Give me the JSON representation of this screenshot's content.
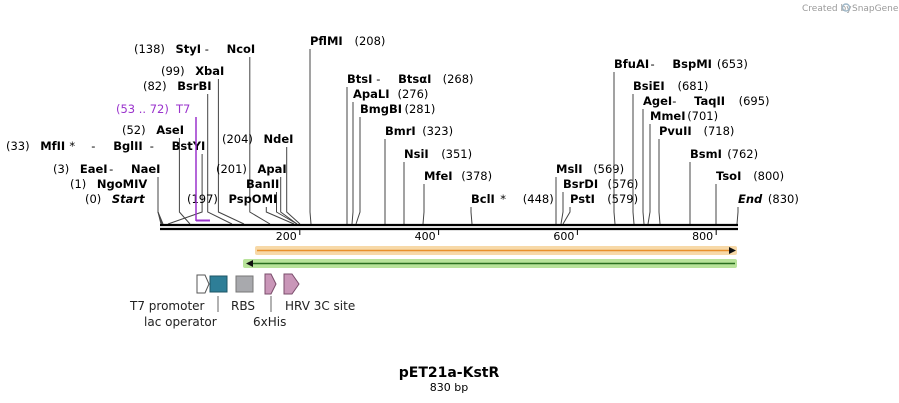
{
  "credit": "Created by",
  "brand": "SnapGene",
  "title": "pET21a-KstR",
  "length_label": "830 bp",
  "sequence_length": 830,
  "ruler_ticks": [
    {
      "pos": 200,
      "label": "200"
    },
    {
      "pos": 400,
      "label": "400"
    },
    {
      "pos": 600,
      "label": "600"
    },
    {
      "pos": 800,
      "label": "800"
    }
  ],
  "enzymes": [
    {
      "pos": 138,
      "site": 270,
      "row": 0,
      "pos_label": "(138)",
      "names": [
        {
          "t": "StyI",
          "b": true
        },
        {
          "t": " - ",
          "b": false
        },
        {
          "t": "NcoI",
          "b": true
        }
      ]
    },
    {
      "pos": 208,
      "site": 311,
      "row": -0.5,
      "pos_label": "(208)",
      "names": [
        {
          "t": "PflMI",
          "b": true
        }
      ],
      "side": "right"
    },
    {
      "pos": 99,
      "site": 244,
      "row": 1,
      "pos_label": "(99)",
      "names": [
        {
          "t": "XbaI",
          "b": true
        }
      ]
    },
    {
      "pos": 82,
      "site": 232,
      "row": 2,
      "pos_label": "(82)",
      "names": [
        {
          "t": "BsrBI",
          "b": true
        }
      ]
    },
    {
      "pos": 52,
      "site": 190,
      "row": 4,
      "pos_label": "(52)",
      "names": [
        {
          "t": "AseI",
          "b": true
        }
      ]
    },
    {
      "pos": 33,
      "site": 168,
      "row": 5,
      "pos_label": "(33)",
      "names": [
        {
          "t": "MfII",
          "b": true
        },
        {
          "t": " * ",
          "b": false
        },
        {
          "t": " - ",
          "b": false
        },
        {
          "t": "BglII",
          "b": true
        },
        {
          "t": " - ",
          "b": false
        },
        {
          "t": "BstYI",
          "b": true
        }
      ]
    },
    {
      "pos": 3,
      "site": 163,
      "row": 6,
      "pos_label": "(3)",
      "names": [
        {
          "t": "EaeI",
          "b": true
        },
        {
          "t": " - ",
          "b": false
        },
        {
          "t": "NaeI",
          "b": true
        }
      ]
    },
    {
      "pos": 1,
      "site": 162,
      "row": 7,
      "pos_label": "(1)",
      "names": [
        {
          "t": "NgoMIV",
          "b": true
        }
      ]
    },
    {
      "pos": 0,
      "site": 161,
      "row": 8,
      "pos_label": "(0)",
      "names": [
        {
          "t": "Start",
          "b": true,
          "i": true
        }
      ]
    },
    {
      "pos": 204,
      "site": 300,
      "row": 4.3,
      "pos_label": "(204)",
      "names": [
        {
          "t": "NdeI",
          "b": true
        }
      ]
    },
    {
      "pos": 201,
      "site": 297,
      "row": 5.4,
      "pos_label": "(201)",
      "names": [
        {
          "t": "ApaI",
          "b": true
        }
      ]
    },
    {
      "pos": 201,
      "site": 297,
      "row": 6.4,
      "pos_label": "",
      "names": [
        {
          "t": "BanII",
          "b": true
        }
      ]
    },
    {
      "pos": 197,
      "site": 294,
      "row": 7.4,
      "pos_label": "(197)",
      "names": [
        {
          "t": "PspOMI",
          "b": true
        }
      ]
    },
    {
      "pos": 268,
      "site": 347,
      "row": 1,
      "pos_label": "(268)",
      "names": [
        {
          "t": "BtsI",
          "b": true
        },
        {
          "t": " - ",
          "b": false
        },
        {
          "t": "BtsαI",
          "b": true
        }
      ],
      "side": "right"
    },
    {
      "pos": 276,
      "site": 352,
      "row": 2,
      "pos_label": "(276)",
      "names": [
        {
          "t": "ApaLI",
          "b": true
        }
      ],
      "side": "right"
    },
    {
      "pos": 281,
      "site": 356,
      "row": 3,
      "pos_label": "(281)",
      "names": [
        {
          "t": "BmgBI",
          "b": true
        }
      ],
      "side": "right"
    },
    {
      "pos": 323,
      "site": 385,
      "row": 4.5,
      "pos_label": "(323)",
      "names": [
        {
          "t": "BmrI",
          "b": true
        }
      ],
      "side": "right"
    },
    {
      "pos": 351,
      "site": 404,
      "row": 5.6,
      "pos_label": "(351)",
      "names": [
        {
          "t": "NsiI",
          "b": true
        }
      ],
      "side": "right"
    },
    {
      "pos": 378,
      "site": 423,
      "row": 6.7,
      "pos_label": "(378)",
      "names": [
        {
          "t": "MfeI",
          "b": true
        }
      ],
      "side": "right"
    },
    {
      "pos": 448,
      "site": 472,
      "row": 8,
      "pos_label": "(448)",
      "names": [
        {
          "t": "BclI",
          "b": true
        },
        {
          "t": " *",
          "b": false
        }
      ],
      "side": "right"
    },
    {
      "pos": 569,
      "site": 556,
      "row": 6,
      "pos_label": "(569)",
      "names": [
        {
          "t": "MslI",
          "b": true
        }
      ],
      "side": "right"
    },
    {
      "pos": 576,
      "site": 561,
      "row": 7,
      "pos_label": "(576)",
      "names": [
        {
          "t": "BsrDI",
          "b": true
        }
      ],
      "side": "right"
    },
    {
      "pos": 579,
      "site": 563,
      "row": 8,
      "pos_label": "(579)",
      "names": [
        {
          "t": "PstI",
          "b": true
        }
      ],
      "side": "right"
    },
    {
      "pos": 653,
      "site": 615,
      "row": 0.9,
      "pos_label": "(653)",
      "names": [
        {
          "t": "BfuAI",
          "b": true
        },
        {
          "t": " - ",
          "b": false
        },
        {
          "t": "BspMI",
          "b": true
        }
      ],
      "side": "right"
    },
    {
      "pos": 681,
      "site": 634,
      "row": 2.2,
      "pos_label": "(681)",
      "names": [
        {
          "t": "BsiEI",
          "b": true
        }
      ],
      "side": "right"
    },
    {
      "pos": 695,
      "site": 644,
      "row": 3.2,
      "pos_label": "(695)",
      "names": [
        {
          "t": "AgeI",
          "b": true
        },
        {
          "t": " - ",
          "b": false
        },
        {
          "t": "TaqII",
          "b": true
        }
      ],
      "side": "right"
    },
    {
      "pos": 701,
      "site": 648,
      "row": 4.1,
      "pos_label": "(701)",
      "names": [
        {
          "t": "MmeI",
          "b": true
        }
      ],
      "side": "right"
    },
    {
      "pos": 718,
      "site": 660,
      "row": 5,
      "pos_label": "(718)",
      "names": [
        {
          "t": "PvuII",
          "b": true
        }
      ],
      "side": "right"
    },
    {
      "pos": 762,
      "site": 690,
      "row": 6,
      "pos_label": "(762)",
      "names": [
        {
          "t": "BsmI",
          "b": true
        }
      ],
      "side": "right"
    },
    {
      "pos": 800,
      "site": 716,
      "row": 7,
      "pos_label": "(800)",
      "names": [
        {
          "t": "TsoI",
          "b": true
        }
      ],
      "side": "right"
    },
    {
      "pos": 830,
      "site": 737,
      "row": 8,
      "pos_label": "(830)",
      "names": [
        {
          "t": "End",
          "b": true,
          "i": true
        }
      ],
      "side": "right"
    }
  ],
  "primer": {
    "range_label": "(53 .. 72)",
    "name": "T7",
    "color": "#9a33cc"
  },
  "orf_forward": {
    "color": "#e8902a",
    "halo": "#f7d9a8"
  },
  "orf_reverse": {
    "color": "#2a6e1f",
    "halo": "#b8e39a"
  },
  "features": [
    {
      "name": "T7 promoter",
      "color": "#ffffff"
    },
    {
      "name": "lac operator",
      "color": "#2e7e97"
    },
    {
      "name": "RBS",
      "color": "#a8a9ad"
    },
    {
      "name": "6xHis",
      "color": "#c996b8"
    },
    {
      "name": "HRV 3C site",
      "color": "#c996b8"
    }
  ]
}
